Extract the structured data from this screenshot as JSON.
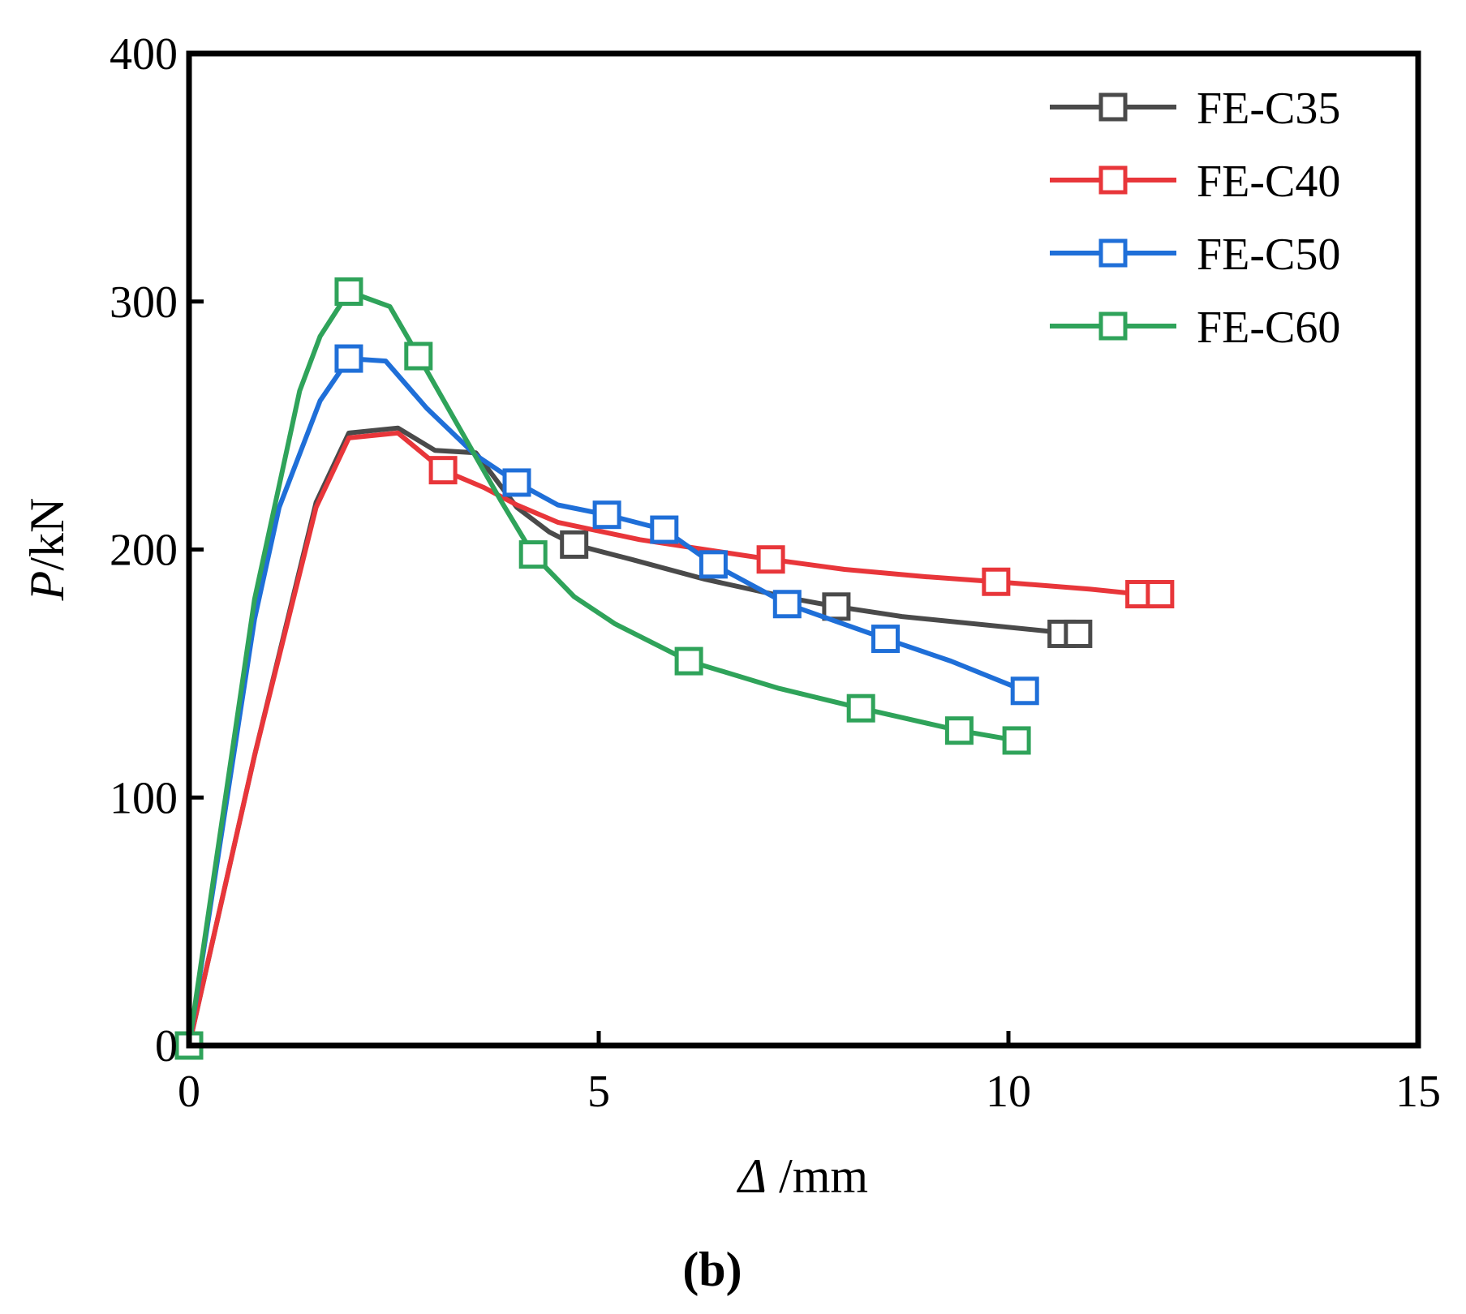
{
  "chart_data": {
    "type": "line",
    "title": "",
    "panel_label": "(b)",
    "xlabel": "Δ /mm",
    "xlabel_symbol": "Δ",
    "xlabel_unit": " /mm",
    "ylabel": "P/kN",
    "ylabel_symbol": "P",
    "ylabel_unit": "/kN",
    "xlim": [
      0,
      15
    ],
    "ylim": [
      0,
      400
    ],
    "xticks": [
      0,
      5,
      10,
      15
    ],
    "xtick_labels": [
      "0",
      "5",
      "10",
      "15"
    ],
    "yticks": [
      0,
      100,
      200,
      300,
      400
    ],
    "ytick_labels": [
      "0",
      "100",
      "200",
      "300",
      "400"
    ],
    "grid": false,
    "legend_position": "top-right",
    "marker": "open-square",
    "series": [
      {
        "name": "FE-C35",
        "color": "#4a4a4a",
        "x": [
          0,
          0.8,
          1.55,
          1.95,
          2.55,
          3.0,
          3.5,
          4.0,
          4.4,
          4.7,
          5.4,
          6.3,
          7.4,
          7.9,
          8.7,
          10.5,
          10.65,
          10.85
        ],
        "y": [
          0,
          117,
          219,
          247,
          249,
          240,
          239,
          217,
          207,
          202,
          196,
          188,
          180,
          177,
          173,
          167,
          166,
          166
        ],
        "markers_x": [
          0,
          4.7,
          7.9,
          10.65,
          10.85
        ],
        "markers_y": [
          0,
          202,
          177,
          166,
          166
        ]
      },
      {
        "name": "FE-C40",
        "color": "#e8363a",
        "x": [
          0,
          0.8,
          1.55,
          1.95,
          2.55,
          3.1,
          3.6,
          4.0,
          4.5,
          5.5,
          6.5,
          7.1,
          8.0,
          9.0,
          9.85,
          11.0,
          11.6,
          11.85
        ],
        "y": [
          0,
          117,
          217,
          245,
          247,
          232,
          225,
          218,
          211,
          204,
          199,
          196,
          192,
          189,
          187,
          184,
          182,
          182
        ],
        "markers_x": [
          0,
          3.1,
          7.1,
          9.85,
          11.6,
          11.85
        ],
        "markers_y": [
          0,
          232,
          196,
          187,
          182,
          182
        ]
      },
      {
        "name": "FE-C50",
        "color": "#1f6fd8",
        "x": [
          0,
          0.8,
          1.1,
          1.6,
          1.95,
          2.4,
          2.9,
          3.5,
          4.0,
          4.5,
          5.1,
          5.8,
          6.4,
          7.3,
          8.5,
          9.3,
          10.2
        ],
        "y": [
          0,
          172,
          217,
          260,
          277,
          276,
          257,
          238,
          227,
          218,
          214,
          208,
          194,
          178,
          164,
          155,
          143
        ],
        "markers_x": [
          0,
          1.95,
          4.0,
          5.1,
          5.8,
          6.4,
          7.3,
          8.5,
          10.2
        ],
        "markers_y": [
          0,
          277,
          227,
          214,
          208,
          194,
          178,
          164,
          143
        ]
      },
      {
        "name": "FE-C60",
        "color": "#2fa35a",
        "x": [
          0,
          0.8,
          1.35,
          1.6,
          1.95,
          2.45,
          2.8,
          3.3,
          3.8,
          4.2,
          4.7,
          5.2,
          6.1,
          7.2,
          8.2,
          9.4,
          10.1
        ],
        "y": [
          0,
          180,
          264,
          286,
          304,
          298,
          278,
          249,
          220,
          198,
          181,
          170,
          155,
          144,
          136,
          127,
          123
        ],
        "markers_x": [
          0,
          1.95,
          2.8,
          4.2,
          6.1,
          8.2,
          9.4,
          10.1
        ],
        "markers_y": [
          0,
          304,
          278,
          198,
          155,
          136,
          127,
          123
        ]
      }
    ]
  }
}
